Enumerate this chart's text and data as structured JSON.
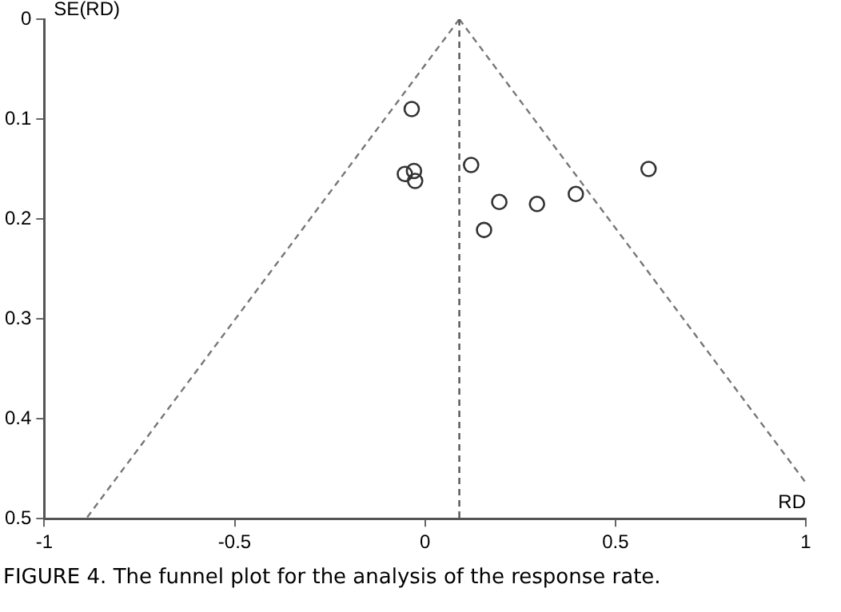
{
  "chart_data": {
    "type": "scatter",
    "xlabel": "RD",
    "ylabel": "SE(RD)",
    "annotations": [
      "FIGURE 4. The funnel plot for the analysis of the response rate."
    ],
    "xlim": [
      -1,
      1
    ],
    "xticks": [
      -1,
      -0.5,
      0,
      0.5,
      1
    ],
    "ylim": [
      0.5,
      0
    ],
    "yticks": [
      0,
      0.1,
      0.2,
      0.3,
      0.4,
      0.5
    ],
    "grid": false,
    "legend": false,
    "series": [
      {
        "type": "scatter",
        "marker": "circle",
        "color": "#333333",
        "x": [
          -0.035,
          -0.053,
          -0.029,
          -0.026,
          0.121,
          0.195,
          0.155,
          0.294,
          0.396,
          0.587
        ],
        "values": [
          0.09,
          0.155,
          0.152,
          0.162,
          0.146,
          0.183,
          0.211,
          0.185,
          0.175,
          0.15
        ]
      },
      {
        "type": "line",
        "line_style": "dashed",
        "marker": "none",
        "color": "#777777",
        "x": [
          0.09,
          -0.89
        ],
        "values": [
          0,
          0.5
        ]
      },
      {
        "type": "line",
        "line_style": "dashed",
        "marker": "none",
        "color": "#777777",
        "x": [
          0.09,
          1
        ],
        "values": [
          0,
          0.464
        ]
      }
    ],
    "ref_lines": [
      {
        "axis": "x",
        "value": 0.09,
        "line_style": "dashed",
        "color": "#555555"
      }
    ]
  }
}
